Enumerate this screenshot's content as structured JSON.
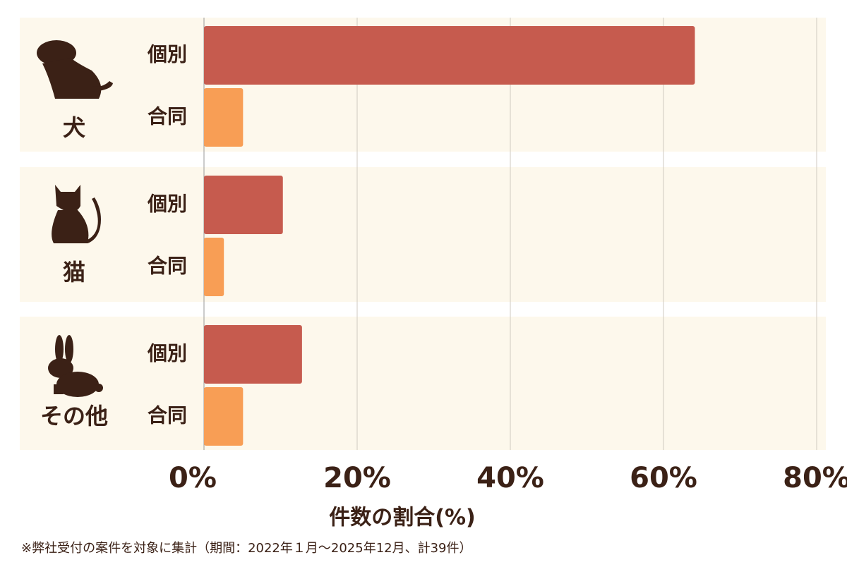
{
  "chart_data": {
    "type": "grouped-hbar",
    "categories": [
      "犬",
      "猫",
      "その他"
    ],
    "series": [
      {
        "name": "個別",
        "color": "#c65b4e",
        "values": [
          64.1,
          10.3,
          12.8
        ]
      },
      {
        "name": "合同",
        "color": "#f89e55",
        "values": [
          5.1,
          2.6,
          5.1
        ]
      }
    ],
    "xlim": [
      0,
      80
    ],
    "xticks": [
      {
        "value": 0,
        "label": "0%"
      },
      {
        "value": 20,
        "label": "20%"
      },
      {
        "value": 40,
        "label": "40%"
      },
      {
        "value": 60,
        "label": "60%"
      },
      {
        "value": 80,
        "label": "80%"
      }
    ],
    "xlabel": "件数の割合(%)",
    "grid": true,
    "footnote": "※弊社受付の案件を対象に集計（期間：2022年１月～2025年12月、計39件）"
  }
}
